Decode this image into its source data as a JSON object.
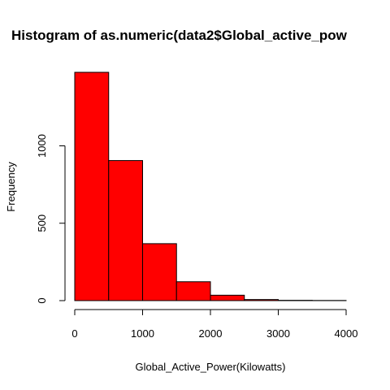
{
  "chart_data": {
    "type": "bar",
    "title": "Histogram of as.numeric(data2$Global_active_pow",
    "xlabel": "Global_Active_Power(Kilowatts)",
    "ylabel": "Frequency",
    "bin_edges": [
      0,
      500,
      1000,
      1500,
      2000,
      2500,
      3000,
      3500,
      4000
    ],
    "values": [
      1475,
      905,
      368,
      122,
      35,
      7,
      2,
      1
    ],
    "xlim": [
      0,
      4000
    ],
    "ylim": [
      0,
      1475
    ],
    "xticks": [
      0,
      1000,
      2000,
      3000,
      4000
    ],
    "yticks": [
      0,
      500,
      1000
    ],
    "xtick_labels": [
      "0",
      "1000",
      "2000",
      "3000",
      "4000"
    ],
    "ytick_labels": [
      "0",
      "500",
      "1000"
    ],
    "bar_color": "#ff0000",
    "bar_border_color": "#000000",
    "grid": false,
    "legend": "none"
  }
}
